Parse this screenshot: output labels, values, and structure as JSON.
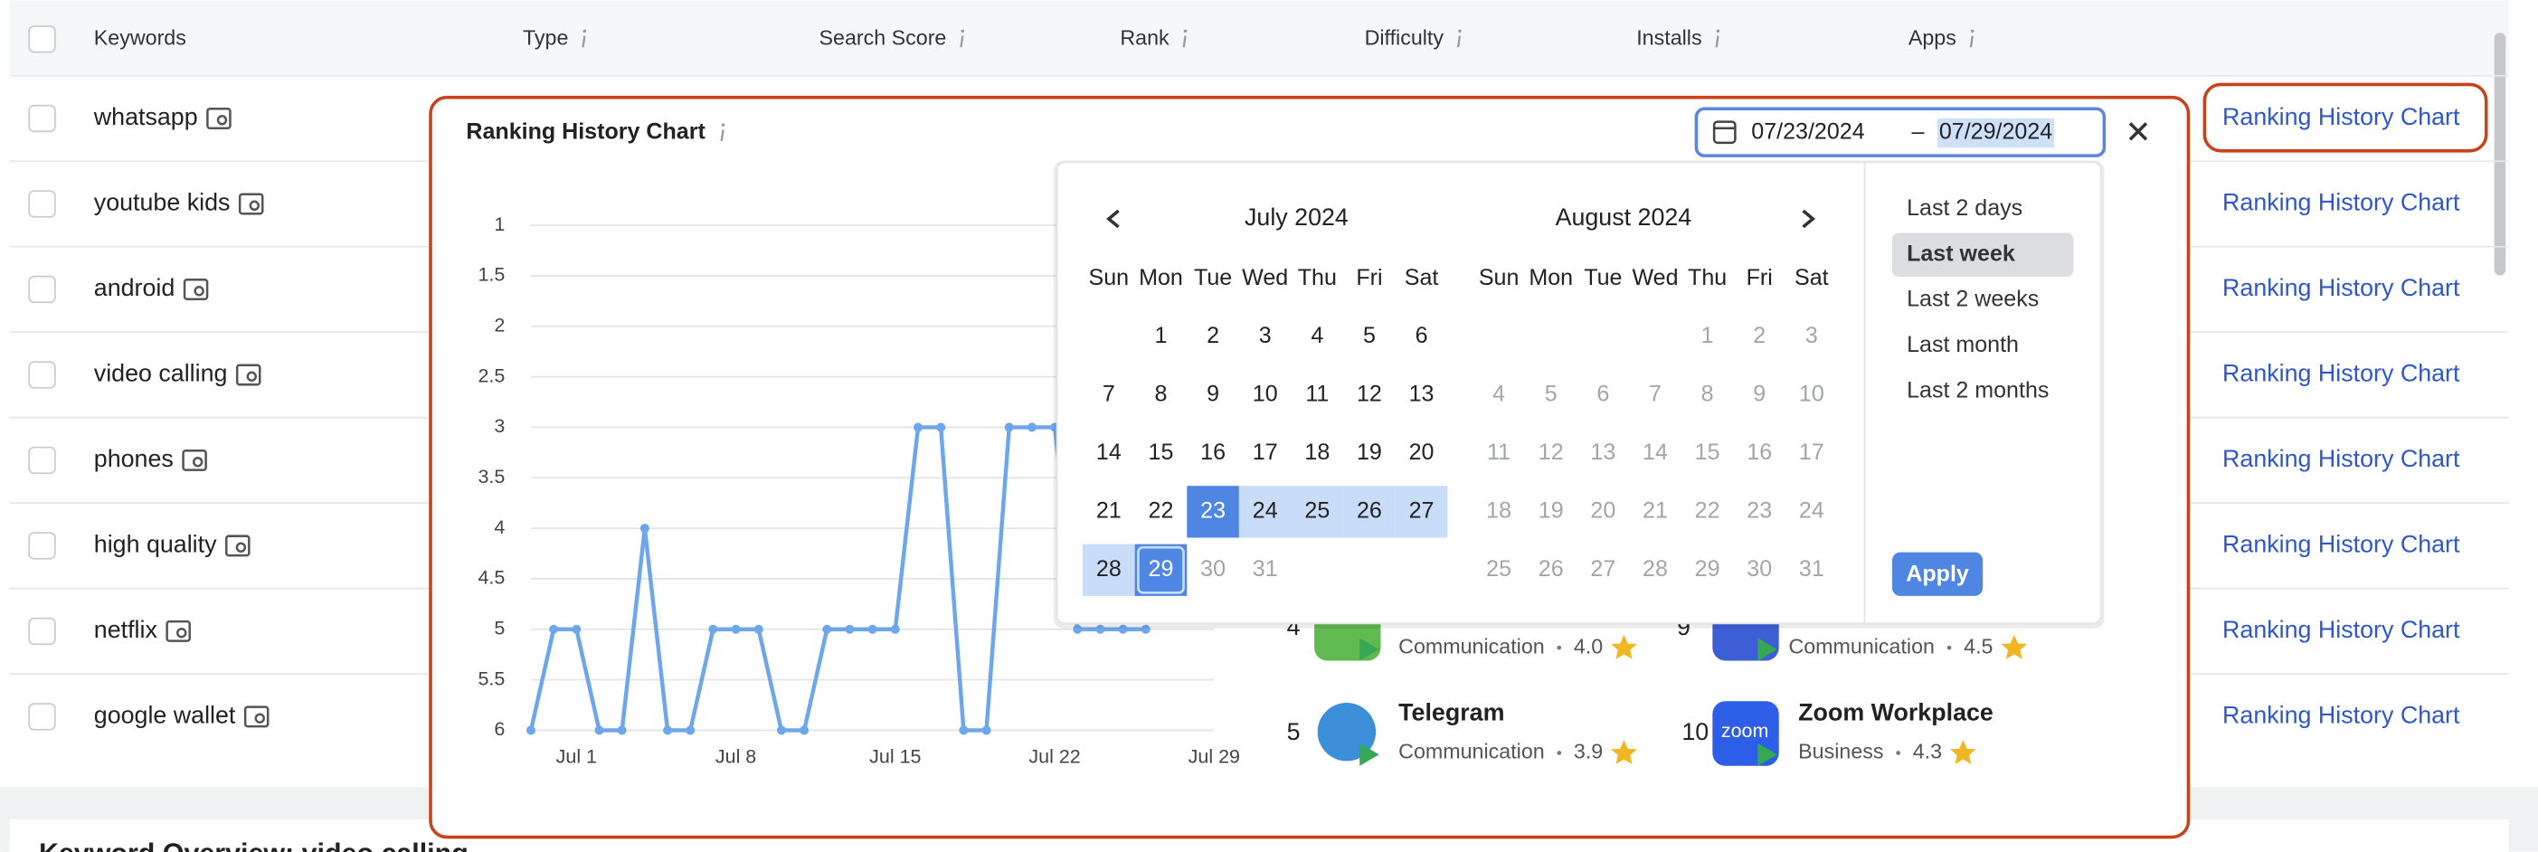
{
  "table": {
    "headers": [
      "Keywords",
      "Type",
      "Search Score",
      "Rank",
      "Difficulty",
      "Installs",
      "Apps"
    ],
    "rows": [
      {
        "keyword": "whatsapp",
        "action": "Ranking History Chart"
      },
      {
        "keyword": "youtube kids",
        "action": "Ranking History Chart"
      },
      {
        "keyword": "android",
        "action": "Ranking History Chart"
      },
      {
        "keyword": "video calling",
        "action": "Ranking History Chart"
      },
      {
        "keyword": "phones",
        "action": "Ranking History Chart"
      },
      {
        "keyword": "high quality",
        "action": "Ranking History Chart"
      },
      {
        "keyword": "netflix",
        "action": "Ranking History Chart"
      },
      {
        "keyword": "google wallet",
        "action": "Ranking History Chart"
      }
    ]
  },
  "popup": {
    "title": "Ranking History Chart",
    "date_start": "07/23/2024",
    "date_separator": "–",
    "date_end": "07/29/2024",
    "chart": {
      "type": "line",
      "categories": [
        null,
        null,
        "Jul 1",
        null,
        null,
        null,
        null,
        null,
        null,
        "Jul 8",
        null,
        null,
        null,
        null,
        null,
        null,
        "Jul 15",
        null,
        null,
        null,
        null,
        null,
        null,
        "Jul 22",
        null,
        null,
        null,
        null,
        null,
        null,
        "Jul 29"
      ],
      "values": [
        6,
        5,
        5,
        6,
        6,
        4,
        6,
        6,
        5,
        5,
        5,
        6,
        6,
        5,
        5,
        5,
        5,
        3,
        3,
        6,
        6,
        3,
        3,
        3,
        5,
        5,
        5,
        5,
        null,
        null,
        null
      ],
      "color": "#6ea6ec",
      "ylim": [
        6,
        1
      ],
      "yticks": [
        1,
        1.5,
        2,
        2.5,
        3,
        3.5,
        4,
        4.5,
        5,
        5.5,
        6
      ],
      "grid": true
    },
    "apps": [
      {
        "rank": 4,
        "category": "Communication",
        "rating": "4.0"
      },
      {
        "rank": 9,
        "category": "Communication",
        "rating": "4.5"
      },
      {
        "rank": 5,
        "name": "Telegram",
        "category": "Communication",
        "rating": "3.9"
      },
      {
        "rank": 10,
        "name": "Zoom Workplace",
        "category": "Business",
        "rating": "4.3",
        "icon_text": "zoom"
      }
    ],
    "calendar": {
      "weekdays": [
        "Sun",
        "Mon",
        "Tue",
        "Wed",
        "Thu",
        "Fri",
        "Sat"
      ],
      "months": [
        {
          "title": "July 2024",
          "days": [
            1,
            2,
            3,
            4,
            5,
            6,
            7,
            8,
            9,
            10,
            11,
            12,
            13,
            14,
            15,
            16,
            17,
            18,
            19,
            20,
            21,
            22,
            23,
            24,
            25,
            26,
            27,
            28,
            29,
            30,
            31
          ]
        },
        {
          "title": "August 2024",
          "days": [
            1,
            2,
            3,
            4,
            5,
            6,
            7,
            8,
            9,
            10,
            11,
            12,
            13,
            14,
            15,
            16,
            17,
            18,
            19,
            20,
            21,
            22,
            23,
            24,
            25,
            26,
            27,
            28,
            29,
            30,
            31
          ]
        }
      ],
      "selected_start": 23,
      "selected_end": 29,
      "presets": [
        "Last 2 days",
        "Last week",
        "Last 2 weeks",
        "Last month",
        "Last 2 months"
      ],
      "active_preset": 1,
      "apply": "Apply"
    }
  },
  "section_title": "Keyword Overview: video calling"
}
